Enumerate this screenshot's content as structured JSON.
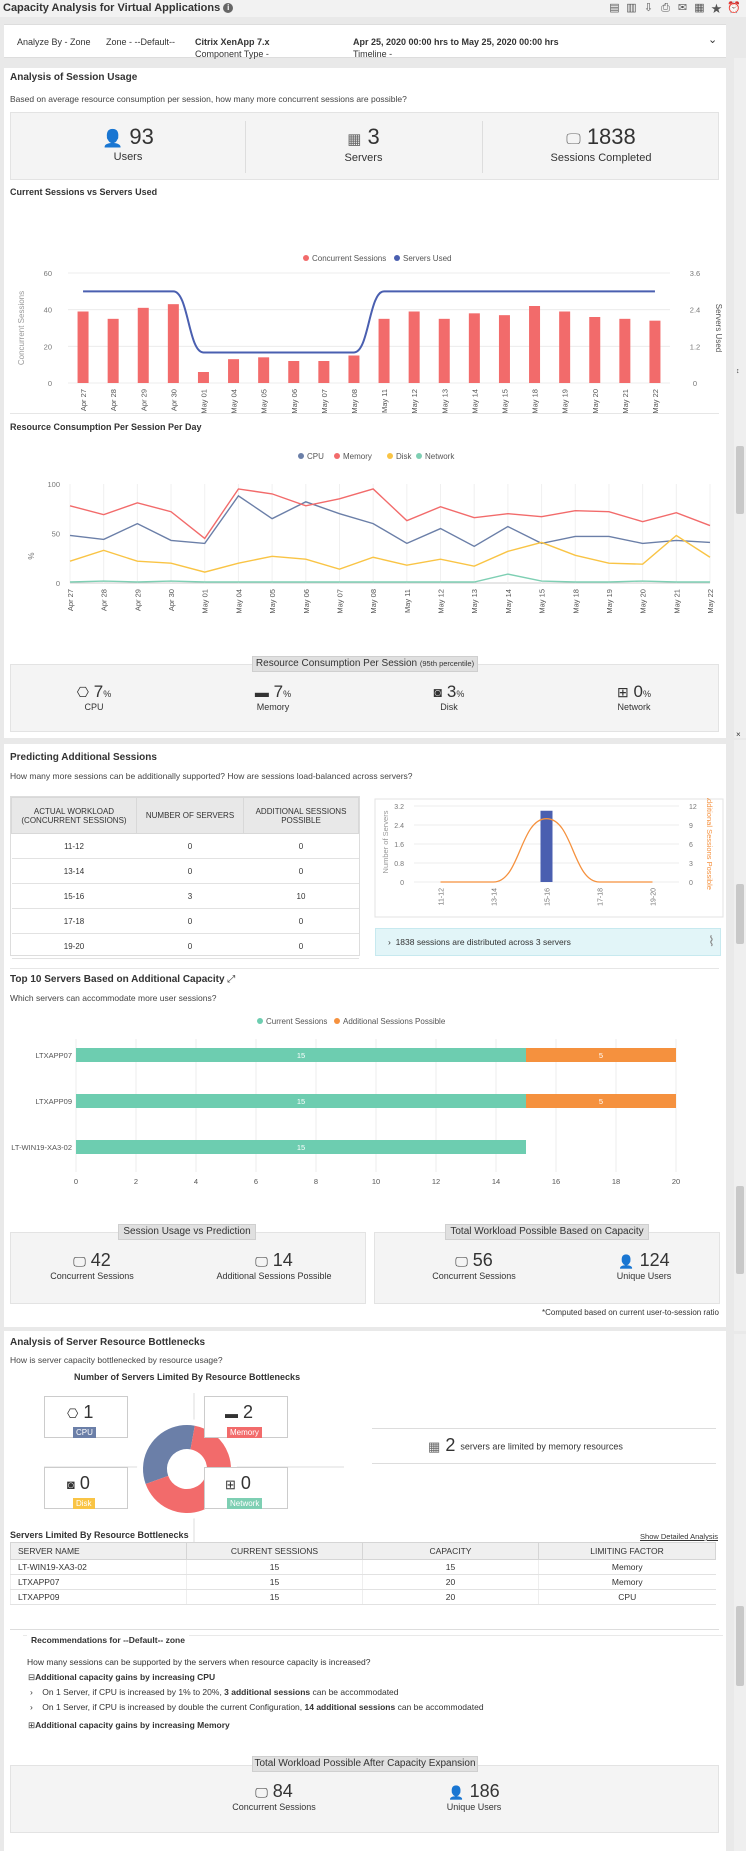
{
  "page": {
    "title": "Capacity Analysis for Virtual Applications"
  },
  "filters": {
    "analyze_by": "Analyze By - Zone",
    "zone": "Zone - --Default--",
    "component_type_label": "Component Type - ",
    "component_type_value": "Citrix XenApp 7.x",
    "timeline_label": "Timeline - ",
    "timeline_value": "Apr 25, 2020 00:00 hrs to May 25, 2020 00:00 hrs"
  },
  "session_usage": {
    "title": "Analysis of Session Usage",
    "subtitle": "Based on average resource consumption per session, how many more concurrent sessions are possible?",
    "users": {
      "value": "93",
      "label": "Users"
    },
    "servers": {
      "value": "3",
      "label": "Servers"
    },
    "sessions_completed": {
      "value": "1838",
      "label": "Sessions Completed"
    }
  },
  "chart1": {
    "title": "Current Sessions vs Servers Used",
    "legend": [
      "Concurrent Sessions",
      "Servers Used"
    ],
    "ylabel_left": "Concurrent Sessions",
    "ylabel_right": "Servers Used",
    "yticks_left": [
      "60",
      "40",
      "20",
      "0"
    ],
    "yticks_right": [
      "3.6",
      "2.4",
      "1.2",
      "0"
    ],
    "colors": {
      "bar": "#f26b6b",
      "line": "#4a5fb0"
    }
  },
  "chart2": {
    "title": "Resource Consumption Per Session Per Day",
    "legend": [
      "CPU",
      "Memory",
      "Disk",
      "Network"
    ],
    "ylabel": "%",
    "yticks": [
      "100",
      "50",
      "0"
    ],
    "colors": {
      "cpu": "#6b7fa8",
      "memory": "#f26b6b",
      "disk": "#f9c445",
      "network": "#7ecfb3"
    }
  },
  "resource_95": {
    "title": "Resource Consumption Per Session ",
    "title_small": "(95th percentile)",
    "items": [
      {
        "value": "7",
        "unit": "%",
        "label": "CPU",
        "icon": "cpu-icon"
      },
      {
        "value": "7",
        "unit": "%",
        "label": "Memory",
        "icon": "memory-icon"
      },
      {
        "value": "3",
        "unit": "%",
        "label": "Disk",
        "icon": "disk-icon"
      },
      {
        "value": "0",
        "unit": "%",
        "label": "Network",
        "icon": "network-icon"
      }
    ]
  },
  "predicting": {
    "title": "Predicting Additional Sessions",
    "subtitle": "How many more sessions can be additionally supported? How are sessions load-balanced across servers?",
    "columns": [
      "ACTUAL WORKLOAD (CONCURRENT SESSIONS)",
      "NUMBER OF SERVERS",
      "ADDITIONAL SESSIONS POSSIBLE"
    ],
    "rows": [
      [
        "11-12",
        "0",
        "0"
      ],
      [
        "13-14",
        "0",
        "0"
      ],
      [
        "15-16",
        "3",
        "10"
      ],
      [
        "17-18",
        "0",
        "0"
      ],
      [
        "19-20",
        "0",
        "0"
      ]
    ],
    "chart_ylabel_left": "Number of Servers",
    "chart_ylabel_right": "Additional Sessions Possible",
    "yticks_left": [
      "3.2",
      "2.4",
      "1.6",
      "0.8",
      "0"
    ],
    "yticks_right": [
      "12",
      "9",
      "6",
      "3",
      "0"
    ],
    "note": "1838 sessions are distributed across 3 servers"
  },
  "top10": {
    "title": "Top 10 Servers Based on Additional Capacity",
    "subtitle": "Which servers can accommodate more user sessions?",
    "legend": [
      "Current Sessions",
      "Additional Sessions Possible"
    ],
    "colors": {
      "current": "#6dcdb0",
      "additional": "#f5913e"
    }
  },
  "summary": {
    "left_title": "Session Usage vs Prediction",
    "right_title": "Total Workload Possible Based on Capacity",
    "concurrent": {
      "value": "42",
      "label": "Concurrent Sessions"
    },
    "additional": {
      "value": "14",
      "label": "Additional Sessions Possible"
    },
    "total_concurrent": {
      "value": "56",
      "label": "Concurrent Sessions"
    },
    "unique_users": {
      "value": "124",
      "label": "Unique Users"
    },
    "footnote": "*Computed based on current user-to-session ratio"
  },
  "bottlenecks": {
    "title": "Analysis of Server Resource Bottlenecks",
    "subtitle": "How is server capacity bottlenecked by resource usage?",
    "donut_title": "Number of Servers Limited By Resource Bottlenecks",
    "cpu": {
      "value": "1",
      "label": "CPU",
      "color": "#6b7fa8"
    },
    "memory": {
      "value": "2",
      "label": "Memory",
      "color": "#f26b6b"
    },
    "disk": {
      "value": "0",
      "label": "Disk",
      "color": "#f9c445"
    },
    "network": {
      "value": "0",
      "label": "Network",
      "color": "#7ecfb3"
    },
    "limited_value": "2",
    "limited_text": "servers are limited by memory resources"
  },
  "limited_table": {
    "title": "Servers Limited By Resource Bottlenecks",
    "link": "Show Detailed Analysis",
    "columns": [
      "SERVER NAME",
      "CURRENT SESSIONS",
      "CAPACITY",
      "LIMITING FACTOR"
    ],
    "rows": [
      [
        "LT-WIN19-XA3-02",
        "15",
        "15",
        "Memory"
      ],
      [
        "LTXAPP07",
        "15",
        "20",
        "Memory"
      ],
      [
        "LTXAPP09",
        "15",
        "20",
        "CPU"
      ]
    ]
  },
  "recommendations": {
    "title": "Recommendations for --Default-- zone",
    "question": "How many sessions can be supported by the servers when resource capacity is increased?",
    "cpu_header": "Additional capacity gains by increasing CPU",
    "cpu_line1_a": "On 1 Server, if CPU is increased by 1% to 20%, ",
    "cpu_line1_b": "3 additional sessions",
    "cpu_line1_c": " can be accommodated",
    "cpu_line2_a": "On 1 Server, if CPU is increased by double the current Configuration, ",
    "cpu_line2_b": "14 additional sessions",
    "cpu_line2_c": " can be accommodated",
    "memory_header": "Additional capacity gains by increasing Memory"
  },
  "expansion": {
    "title": "Total Workload Possible After Capacity Expansion",
    "concurrent": {
      "value": "84",
      "label": "Concurrent Sessions"
    },
    "unique_users": {
      "value": "186",
      "label": "Unique Users"
    }
  },
  "chart_data": [
    {
      "type": "bar",
      "title": "Current Sessions vs Servers Used",
      "categories": [
        "Apr 27",
        "Apr 28",
        "Apr 29",
        "Apr 30",
        "May 01",
        "May 04",
        "May 05",
        "May 06",
        "May 07",
        "May 08",
        "May 11",
        "May 12",
        "May 13",
        "May 14",
        "May 15",
        "May 18",
        "May 19",
        "May 20",
        "May 21",
        "May 22"
      ],
      "series": [
        {
          "name": "Concurrent Sessions",
          "type": "bar",
          "axis": "left",
          "values": [
            39,
            35,
            41,
            43,
            6,
            13,
            14,
            12,
            12,
            15,
            35,
            39,
            35,
            38,
            37,
            42,
            39,
            36,
            35,
            34
          ]
        },
        {
          "name": "Servers Used",
          "type": "line",
          "axis": "right",
          "values": [
            3,
            3,
            3,
            3,
            1,
            1,
            1,
            1,
            1,
            1,
            3,
            3,
            3,
            3,
            3,
            3,
            3,
            3,
            3,
            3
          ]
        }
      ],
      "ylim_left": [
        0,
        60
      ],
      "ylim_right": [
        0,
        3.6
      ]
    },
    {
      "type": "line",
      "title": "Resource Consumption Per Session Per Day",
      "categories": [
        "Apr 27",
        "Apr 28",
        "Apr 29",
        "Apr 30",
        "May 01",
        "May 04",
        "May 05",
        "May 06",
        "May 07",
        "May 08",
        "May 11",
        "May 12",
        "May 13",
        "May 14",
        "May 15",
        "May 18",
        "May 19",
        "May 20",
        "May 21",
        "May 22"
      ],
      "series": [
        {
          "name": "CPU",
          "values": [
            48,
            44,
            60,
            43,
            40,
            88,
            65,
            82,
            70,
            60,
            40,
            55,
            37,
            57,
            40,
            47,
            47,
            40,
            43,
            41
          ]
        },
        {
          "name": "Memory",
          "values": [
            78,
            69,
            81,
            72,
            45,
            95,
            90,
            78,
            85,
            95,
            63,
            77,
            66,
            70,
            67,
            73,
            72,
            62,
            71,
            58
          ]
        },
        {
          "name": "Disk",
          "values": [
            22,
            33,
            22,
            20,
            11,
            20,
            27,
            24,
            14,
            26,
            18,
            24,
            17,
            32,
            41,
            28,
            20,
            19,
            48,
            26
          ]
        },
        {
          "name": "Network",
          "values": [
            1,
            2,
            1,
            2,
            1,
            1,
            1,
            1,
            1,
            1,
            1,
            1,
            1,
            9,
            2,
            1,
            1,
            2,
            1,
            1
          ]
        }
      ],
      "ylim": [
        0,
        100
      ]
    },
    {
      "type": "bar",
      "title": "Predicting Additional Sessions",
      "categories": [
        "11-12",
        "13-14",
        "15-16",
        "17-18",
        "19-20"
      ],
      "series": [
        {
          "name": "Number of Servers",
          "type": "bar",
          "axis": "left",
          "values": [
            0,
            0,
            3,
            0,
            0
          ]
        },
        {
          "name": "Additional Sessions Possible",
          "type": "line",
          "axis": "right",
          "values": [
            0,
            0,
            10,
            0,
            0
          ]
        }
      ],
      "ylim_left": [
        0,
        3.2
      ],
      "ylim_right": [
        0,
        12
      ]
    },
    {
      "type": "bar",
      "title": "Top 10 Servers Based on Additional Capacity",
      "orientation": "horizontal",
      "stacked": true,
      "categories": [
        "LTXAPP07",
        "LTXAPP09",
        "LT-WIN19-XA3-02"
      ],
      "series": [
        {
          "name": "Current Sessions",
          "values": [
            15,
            15,
            15
          ]
        },
        {
          "name": "Additional Sessions Possible",
          "values": [
            5,
            5,
            0
          ]
        }
      ],
      "xticks": [
        "0",
        "2",
        "4",
        "6",
        "8",
        "10",
        "12",
        "14",
        "16",
        "18",
        "20"
      ],
      "xlim": [
        0,
        20
      ]
    },
    {
      "type": "pie",
      "title": "Number of Servers Limited By Resource Bottlenecks",
      "slices": [
        {
          "name": "CPU",
          "value": 1
        },
        {
          "name": "Memory",
          "value": 2
        },
        {
          "name": "Disk",
          "value": 0
        },
        {
          "name": "Network",
          "value": 0
        }
      ]
    }
  ]
}
